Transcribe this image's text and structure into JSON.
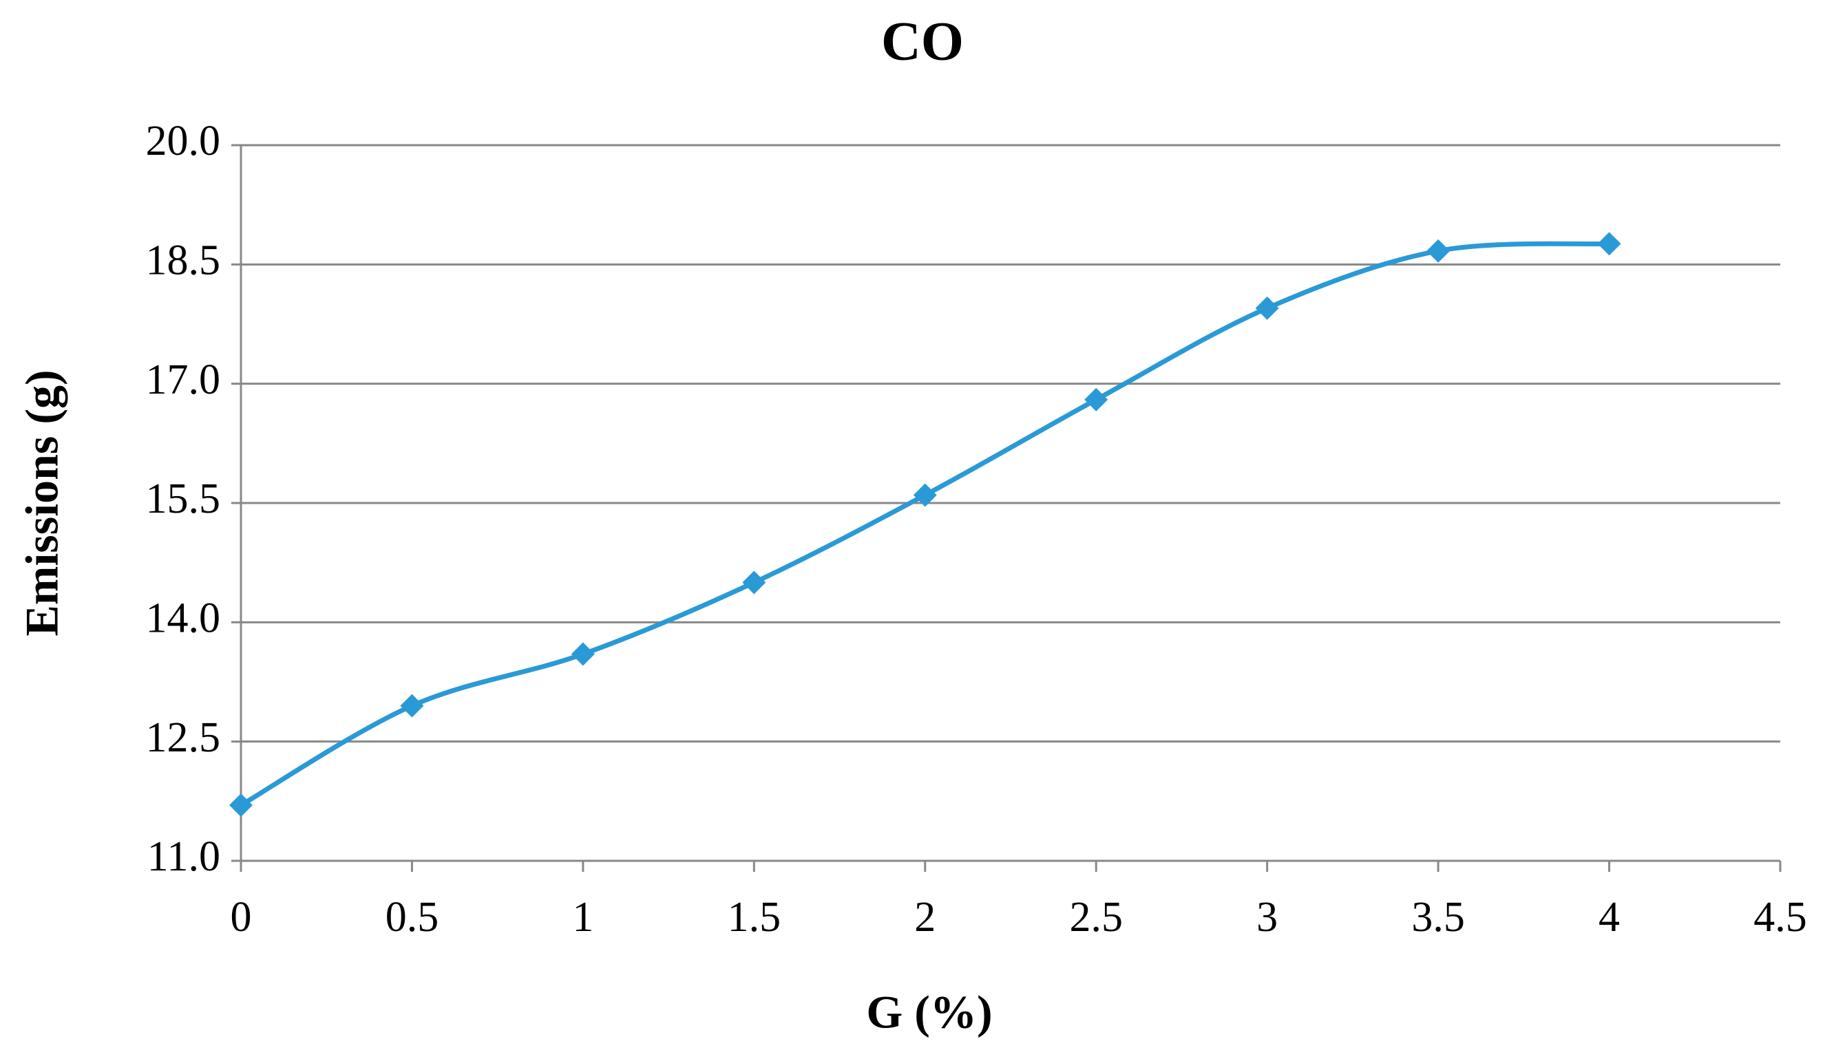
{
  "chart_data": {
    "type": "line",
    "title": "CO",
    "x_label": "G (%)",
    "y_label": "Emissions (g)",
    "x": [
      0,
      0.5,
      1,
      1.5,
      2,
      2.5,
      3,
      3.5,
      4
    ],
    "series": [
      {
        "color": "#2a9ad6",
        "values": [
          11.7,
          12.95,
          13.6,
          14.5,
          15.6,
          16.8,
          17.95,
          18.67,
          18.76
        ]
      }
    ],
    "xlim": [
      0,
      4.5
    ],
    "xticks": [
      0,
      0.5,
      1,
      1.5,
      2,
      2.5,
      3,
      3.5,
      4,
      4.5
    ],
    "ylim": [
      11,
      20
    ],
    "yticks": [
      {
        "value": 11,
        "label": "11.0"
      },
      12.5,
      {
        "value": 14,
        "label": "14.0"
      },
      15.5,
      {
        "value": 17,
        "label": "17.0"
      },
      18.5,
      {
        "value": 20,
        "label": "20.0"
      }
    ],
    "grid": true,
    "smooth": true
  }
}
